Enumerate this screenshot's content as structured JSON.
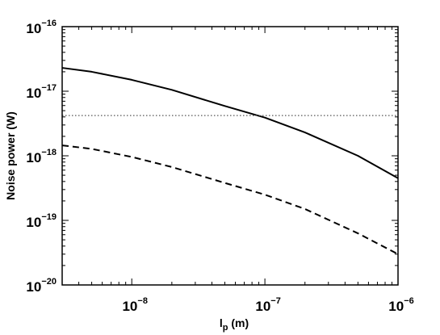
{
  "chart_data": {
    "type": "line",
    "title": "",
    "xlabel": "l",
    "xlabel_subscript": "p",
    "xlabel_unit": " (m)",
    "ylabel": "Noise power (W)",
    "xscale": "log",
    "yscale": "log",
    "xlim": [
      3e-09,
      1e-06
    ],
    "ylim": [
      1e-20,
      1e-16
    ],
    "xticks": [
      {
        "value": 1e-08,
        "base": "10",
        "exp": "−8"
      },
      {
        "value": 1e-07,
        "base": "10",
        "exp": "−7"
      },
      {
        "value": 1e-06,
        "base": "10",
        "exp": "−6"
      }
    ],
    "yticks": [
      {
        "value": 1e-20,
        "base": "10",
        "exp": "−20"
      },
      {
        "value": 1e-19,
        "base": "10",
        "exp": "−19"
      },
      {
        "value": 1e-18,
        "base": "10",
        "exp": "−18"
      },
      {
        "value": 1e-17,
        "base": "10",
        "exp": "−17"
      },
      {
        "value": 1e-16,
        "base": "10",
        "exp": "−16"
      }
    ],
    "grid": false,
    "series": [
      {
        "style": "solid",
        "color": "#000000",
        "x": [
          3e-09,
          5e-09,
          1e-08,
          2e-08,
          5e-08,
          1e-07,
          2e-07,
          5e-07,
          1e-06
        ],
        "y": [
          2.3e-17,
          2e-17,
          1.5e-17,
          1.05e-17,
          5.9e-18,
          3.9e-18,
          2.3e-18,
          1e-18,
          4.5e-19
        ]
      },
      {
        "style": "dashed",
        "color": "#000000",
        "x": [
          3e-09,
          5e-09,
          1e-08,
          2e-08,
          5e-08,
          1e-07,
          2e-07,
          5e-07,
          1e-06
        ],
        "y": [
          1.45e-18,
          1.28e-18,
          9.6e-19,
          6.7e-19,
          3.8e-19,
          2.5e-19,
          1.5e-19,
          6.3e-20,
          3e-20
        ]
      },
      {
        "style": "dotted",
        "color": "#555555",
        "x": [
          3e-09,
          1e-06
        ],
        "y": [
          4.2e-18,
          4.2e-18
        ]
      }
    ]
  }
}
